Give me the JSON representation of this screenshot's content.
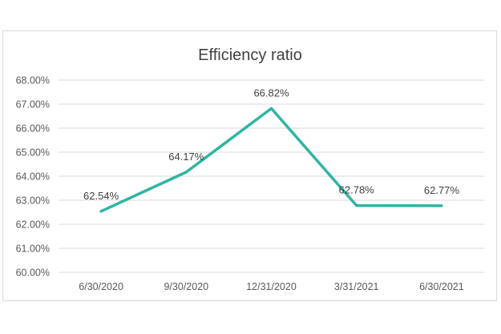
{
  "chart_data": {
    "type": "line",
    "title": "Efficiency ratio",
    "xlabel": "",
    "ylabel": "",
    "categories": [
      "6/30/2020",
      "9/30/2020",
      "12/31/2020",
      "3/31/2021",
      "6/30/2021"
    ],
    "series": [
      {
        "values": [
          62.54,
          64.17,
          66.82,
          62.78,
          62.77
        ],
        "color": "#2fb5a3"
      }
    ],
    "data_labels": [
      "62.54%",
      "64.17%",
      "66.82%",
      "62.78%",
      "62.77%"
    ],
    "ylim": [
      60,
      68
    ],
    "yticks": [
      60,
      61,
      62,
      63,
      64,
      65,
      66,
      67,
      68
    ],
    "ytick_labels": [
      "60.00%",
      "61.00%",
      "62.00%",
      "63.00%",
      "64.00%",
      "65.00%",
      "66.00%",
      "67.00%",
      "68.00%"
    ],
    "grid": true,
    "legend": "none"
  }
}
